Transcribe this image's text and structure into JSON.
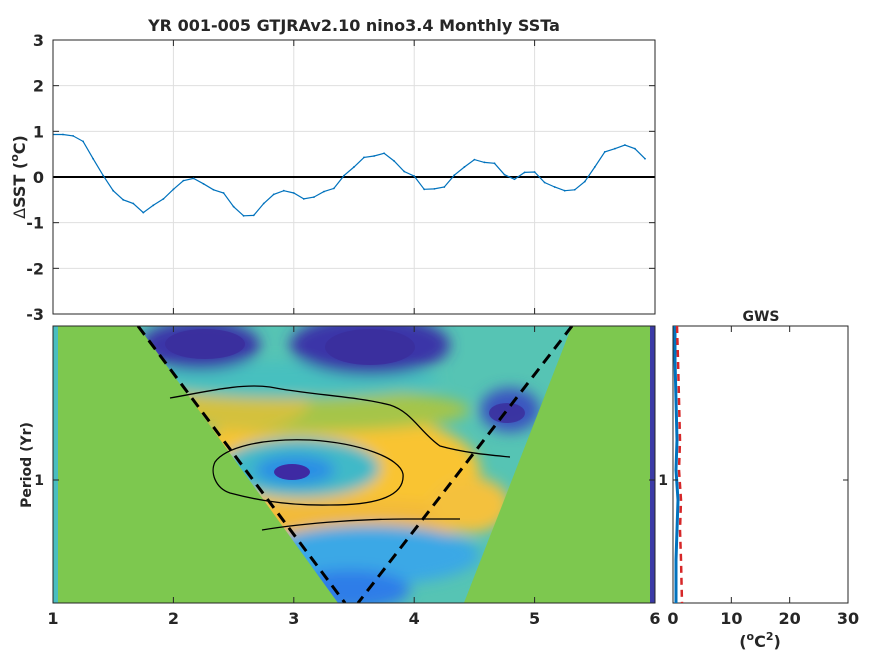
{
  "title": "YR 001-005 GTJRAv2.10 nino3.4 Monthly SSTa",
  "chart_data": [
    {
      "type": "line",
      "title": "YR 001-005 GTJRAv2.10 nino3.4 Monthly SSTa",
      "ylabel_delta": "Δ",
      "ylabel_main": "SST (",
      "ylabel_sup": "o",
      "ylabel_end": "C)",
      "xlim": [
        1,
        6
      ],
      "ylim": [
        -3,
        3
      ],
      "yticks": [
        "-3",
        "-2",
        "-1",
        "0",
        "1",
        "2",
        "3"
      ],
      "grid": true,
      "line_color": "#0072bd",
      "zero_line_color": "#000000",
      "x": [
        1.0,
        1.083,
        1.167,
        1.25,
        1.333,
        1.417,
        1.5,
        1.583,
        1.667,
        1.75,
        1.833,
        1.917,
        2.0,
        2.083,
        2.167,
        2.25,
        2.333,
        2.417,
        2.5,
        2.583,
        2.667,
        2.75,
        2.833,
        2.917,
        3.0,
        3.083,
        3.167,
        3.25,
        3.333,
        3.417,
        3.5,
        3.583,
        3.667,
        3.75,
        3.833,
        3.917,
        4.0,
        4.083,
        4.167,
        4.25,
        4.333,
        4.417,
        4.5,
        4.583,
        4.667,
        4.75,
        4.833,
        4.917,
        5.0,
        5.083,
        5.167,
        5.25,
        5.333,
        5.417,
        5.5,
        5.583,
        5.667,
        5.75,
        5.833,
        5.917
      ],
      "y": [
        0.93,
        0.93,
        0.9,
        0.78,
        0.4,
        0.03,
        -0.3,
        -0.5,
        -0.58,
        -0.78,
        -0.62,
        -0.48,
        -0.27,
        -0.08,
        -0.03,
        -0.15,
        -0.28,
        -0.35,
        -0.65,
        -0.85,
        -0.84,
        -0.58,
        -0.38,
        -0.3,
        -0.35,
        -0.48,
        -0.44,
        -0.32,
        -0.25,
        0.03,
        0.22,
        0.43,
        0.46,
        0.52,
        0.35,
        0.12,
        0.02,
        -0.27,
        -0.26,
        -0.22,
        0.04,
        0.22,
        0.38,
        0.32,
        0.3,
        0.05,
        -0.05,
        0.1,
        0.11,
        -0.12,
        -0.22,
        -0.3,
        -0.28,
        -0.1,
        0.22,
        0.55,
        0.62,
        0.7,
        0.62,
        0.4
      ]
    },
    {
      "type": "heatmap",
      "ylabel": "Period (Yr)",
      "xlim": [
        1,
        6
      ],
      "xticks": [
        "1",
        "2",
        "3",
        "4",
        "5",
        "6"
      ],
      "yticks": [
        "1"
      ],
      "colormap": "parula",
      "background_color": "#7dc84f",
      "cone_of_influence": "dashed black",
      "contour_color": "#000000"
    },
    {
      "type": "line",
      "title": "GWS",
      "xlabel_main": "(",
      "xlabel_sup1": "o",
      "xlabel_mid": "C",
      "xlabel_sup2": "2",
      "xlabel_end": ")",
      "xlim": [
        0,
        30
      ],
      "xticks": [
        "0",
        "10",
        "20",
        "30"
      ],
      "yticks": [
        "1"
      ],
      "series_colors": [
        "#0072bd",
        "#d62728"
      ]
    }
  ]
}
